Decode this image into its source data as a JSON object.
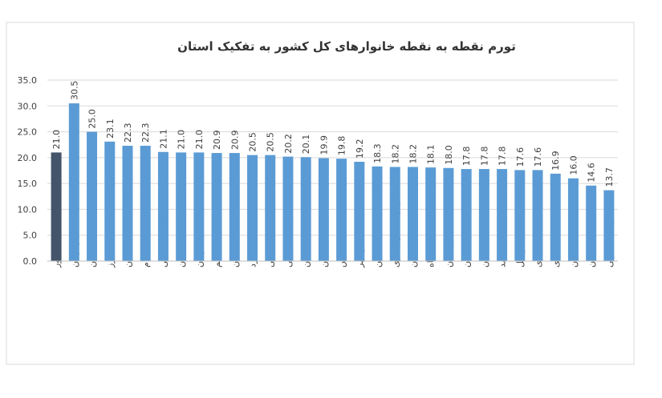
{
  "chart_data": {
    "type": "bar",
    "title": "تورم نقطه به نقطه خانوارهای کل کشور به تفکیک استان",
    "categories": [
      "کل کشور",
      "هرمزگان",
      "تهران",
      "البرز",
      "لرستان",
      "ایلام",
      "خراسان شمالی",
      "اصفهان",
      "کرمان",
      "قم",
      "همدان",
      "یزد",
      "آذربایجان شرقی",
      "خراسان جنوبی",
      "گلستان",
      "گیلان",
      "فارس",
      "بوشهر",
      "قزوین",
      "چهارمحال وبختیاری",
      "خوزستان",
      "کرمانشاه",
      "سیستان وبلوچستان",
      "مازندران",
      "سمنان",
      "کهگیلویه وبویراحمد",
      "اردبیل",
      "خراسان رضوی",
      "مرکزی",
      "زنجان",
      "کردستان",
      "آذربایجان غربی"
    ],
    "values": [
      21.0,
      30.5,
      25.0,
      23.1,
      22.3,
      22.3,
      21.1,
      21.0,
      21.0,
      20.9,
      20.9,
      20.5,
      20.5,
      20.2,
      20.1,
      19.9,
      19.8,
      19.2,
      18.3,
      18.2,
      18.2,
      18.1,
      18.0,
      17.8,
      17.8,
      17.8,
      17.6,
      17.6,
      16.9,
      16.0,
      14.6,
      13.7
    ],
    "value_labels": [
      "21.0",
      "30.5",
      "25.0",
      "23.1",
      "22.3",
      "22.3",
      "21.1",
      "21.0",
      "21.0",
      "20.9",
      "20.9",
      "20.5",
      "20.5",
      "20.2",
      "20.1",
      "19.9",
      "19.8",
      "19.2",
      "18.3",
      "18.2",
      "18.2",
      "18.1",
      "18.0",
      "17.8",
      "17.8",
      "17.8",
      "17.6",
      "17.6",
      "16.9",
      "16.0",
      "14.6",
      "13.7"
    ],
    "colors": [
      "#44546a",
      "#5b9bd5",
      "#5b9bd5",
      "#5b9bd5",
      "#5b9bd5",
      "#5b9bd5",
      "#5b9bd5",
      "#5b9bd5",
      "#5b9bd5",
      "#5b9bd5",
      "#5b9bd5",
      "#5b9bd5",
      "#5b9bd5",
      "#5b9bd5",
      "#5b9bd5",
      "#5b9bd5",
      "#5b9bd5",
      "#5b9bd5",
      "#5b9bd5",
      "#5b9bd5",
      "#5b9bd5",
      "#5b9bd5",
      "#5b9bd5",
      "#5b9bd5",
      "#5b9bd5",
      "#5b9bd5",
      "#5b9bd5",
      "#5b9bd5",
      "#5b9bd5",
      "#5b9bd5",
      "#5b9bd5",
      "#5b9bd5"
    ],
    "ylim": [
      0,
      35
    ],
    "yticks": [
      {
        "value": 0,
        "label": "0.0"
      },
      {
        "value": 5,
        "label": "5.0"
      },
      {
        "value": 10,
        "label": "10.0"
      },
      {
        "value": 15,
        "label": "15.0"
      },
      {
        "value": 20,
        "label": "20.0"
      },
      {
        "value": 25,
        "label": "25.0"
      },
      {
        "value": 30,
        "label": "30.0"
      },
      {
        "value": 35,
        "label": "35.0"
      }
    ],
    "grid": true
  }
}
